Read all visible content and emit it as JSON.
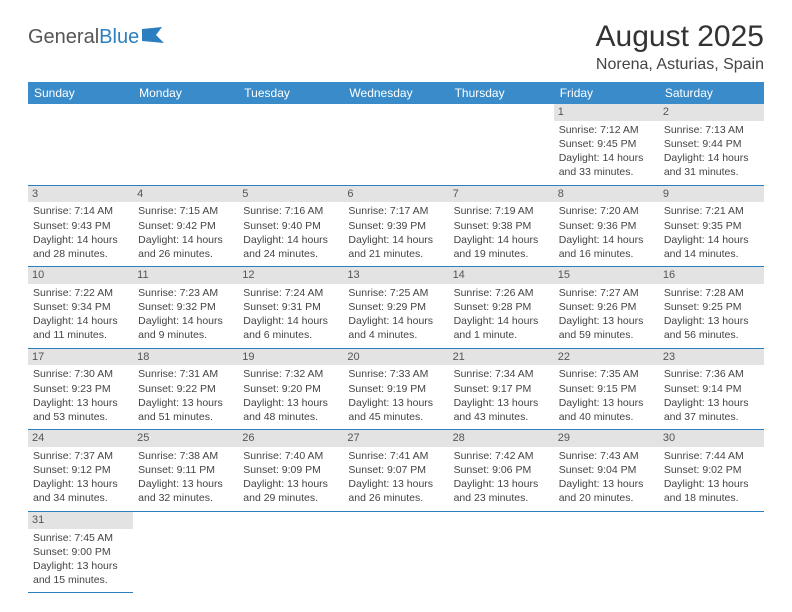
{
  "logo": {
    "part1": "General",
    "part2": "Blue"
  },
  "title": "August 2025",
  "location": "Norena, Asturias, Spain",
  "day_headers": [
    "Sunday",
    "Monday",
    "Tuesday",
    "Wednesday",
    "Thursday",
    "Friday",
    "Saturday"
  ],
  "colors": {
    "header_bg": "#3a8bc9",
    "header_text": "#ffffff",
    "row_divider": "#2c7fbf",
    "daynum_bg": "#e3e3e3",
    "text": "#444444",
    "logo_blue": "#2c7fbf"
  },
  "typography": {
    "title_fontsize": 30,
    "location_fontsize": 16,
    "header_fontsize": 12,
    "cell_fontsize": 10.5,
    "daynum_fontsize": 11
  },
  "first_weekday_index": 5,
  "days": [
    {
      "n": 1,
      "sunrise": "7:12 AM",
      "sunset": "9:45 PM",
      "daylight": "14 hours and 33 minutes."
    },
    {
      "n": 2,
      "sunrise": "7:13 AM",
      "sunset": "9:44 PM",
      "daylight": "14 hours and 31 minutes."
    },
    {
      "n": 3,
      "sunrise": "7:14 AM",
      "sunset": "9:43 PM",
      "daylight": "14 hours and 28 minutes."
    },
    {
      "n": 4,
      "sunrise": "7:15 AM",
      "sunset": "9:42 PM",
      "daylight": "14 hours and 26 minutes."
    },
    {
      "n": 5,
      "sunrise": "7:16 AM",
      "sunset": "9:40 PM",
      "daylight": "14 hours and 24 minutes."
    },
    {
      "n": 6,
      "sunrise": "7:17 AM",
      "sunset": "9:39 PM",
      "daylight": "14 hours and 21 minutes."
    },
    {
      "n": 7,
      "sunrise": "7:19 AM",
      "sunset": "9:38 PM",
      "daylight": "14 hours and 19 minutes."
    },
    {
      "n": 8,
      "sunrise": "7:20 AM",
      "sunset": "9:36 PM",
      "daylight": "14 hours and 16 minutes."
    },
    {
      "n": 9,
      "sunrise": "7:21 AM",
      "sunset": "9:35 PM",
      "daylight": "14 hours and 14 minutes."
    },
    {
      "n": 10,
      "sunrise": "7:22 AM",
      "sunset": "9:34 PM",
      "daylight": "14 hours and 11 minutes."
    },
    {
      "n": 11,
      "sunrise": "7:23 AM",
      "sunset": "9:32 PM",
      "daylight": "14 hours and 9 minutes."
    },
    {
      "n": 12,
      "sunrise": "7:24 AM",
      "sunset": "9:31 PM",
      "daylight": "14 hours and 6 minutes."
    },
    {
      "n": 13,
      "sunrise": "7:25 AM",
      "sunset": "9:29 PM",
      "daylight": "14 hours and 4 minutes."
    },
    {
      "n": 14,
      "sunrise": "7:26 AM",
      "sunset": "9:28 PM",
      "daylight": "14 hours and 1 minute."
    },
    {
      "n": 15,
      "sunrise": "7:27 AM",
      "sunset": "9:26 PM",
      "daylight": "13 hours and 59 minutes."
    },
    {
      "n": 16,
      "sunrise": "7:28 AM",
      "sunset": "9:25 PM",
      "daylight": "13 hours and 56 minutes."
    },
    {
      "n": 17,
      "sunrise": "7:30 AM",
      "sunset": "9:23 PM",
      "daylight": "13 hours and 53 minutes."
    },
    {
      "n": 18,
      "sunrise": "7:31 AM",
      "sunset": "9:22 PM",
      "daylight": "13 hours and 51 minutes."
    },
    {
      "n": 19,
      "sunrise": "7:32 AM",
      "sunset": "9:20 PM",
      "daylight": "13 hours and 48 minutes."
    },
    {
      "n": 20,
      "sunrise": "7:33 AM",
      "sunset": "9:19 PM",
      "daylight": "13 hours and 45 minutes."
    },
    {
      "n": 21,
      "sunrise": "7:34 AM",
      "sunset": "9:17 PM",
      "daylight": "13 hours and 43 minutes."
    },
    {
      "n": 22,
      "sunrise": "7:35 AM",
      "sunset": "9:15 PM",
      "daylight": "13 hours and 40 minutes."
    },
    {
      "n": 23,
      "sunrise": "7:36 AM",
      "sunset": "9:14 PM",
      "daylight": "13 hours and 37 minutes."
    },
    {
      "n": 24,
      "sunrise": "7:37 AM",
      "sunset": "9:12 PM",
      "daylight": "13 hours and 34 minutes."
    },
    {
      "n": 25,
      "sunrise": "7:38 AM",
      "sunset": "9:11 PM",
      "daylight": "13 hours and 32 minutes."
    },
    {
      "n": 26,
      "sunrise": "7:40 AM",
      "sunset": "9:09 PM",
      "daylight": "13 hours and 29 minutes."
    },
    {
      "n": 27,
      "sunrise": "7:41 AM",
      "sunset": "9:07 PM",
      "daylight": "13 hours and 26 minutes."
    },
    {
      "n": 28,
      "sunrise": "7:42 AM",
      "sunset": "9:06 PM",
      "daylight": "13 hours and 23 minutes."
    },
    {
      "n": 29,
      "sunrise": "7:43 AM",
      "sunset": "9:04 PM",
      "daylight": "13 hours and 20 minutes."
    },
    {
      "n": 30,
      "sunrise": "7:44 AM",
      "sunset": "9:02 PM",
      "daylight": "13 hours and 18 minutes."
    },
    {
      "n": 31,
      "sunrise": "7:45 AM",
      "sunset": "9:00 PM",
      "daylight": "13 hours and 15 minutes."
    }
  ],
  "labels": {
    "sunrise": "Sunrise:",
    "sunset": "Sunset:",
    "daylight": "Daylight:"
  }
}
